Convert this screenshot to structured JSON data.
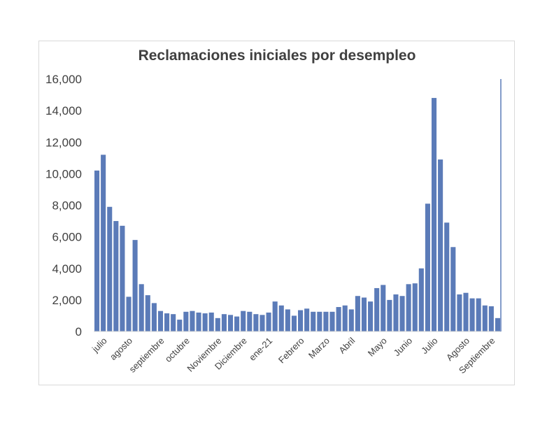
{
  "chart_data": {
    "type": "bar",
    "title": "Reclamaciones iniciales por desempleo",
    "xlabel": "",
    "ylabel": "",
    "ylim": [
      0,
      16000
    ],
    "yticks": [
      "0",
      "2,000",
      "4,000",
      "6,000",
      "8,000",
      "10,000",
      "12,000",
      "14,000",
      "16,000"
    ],
    "grid": false,
    "bar_color": "#5b7bb8",
    "xtick_labels": [
      {
        "label": "julio",
        "index": 1
      },
      {
        "label": "agosto",
        "index": 5
      },
      {
        "label": "septiembre",
        "index": 10
      },
      {
        "label": "octubre",
        "index": 14
      },
      {
        "label": "Noviembre",
        "index": 19
      },
      {
        "label": "Diciembre",
        "index": 23
      },
      {
        "label": "ene-21",
        "index": 27
      },
      {
        "label": "Febrero",
        "index": 32
      },
      {
        "label": "Marzo",
        "index": 36
      },
      {
        "label": "Abril",
        "index": 40
      },
      {
        "label": "Mayo",
        "index": 45
      },
      {
        "label": "Junio",
        "index": 49
      },
      {
        "label": "Julio",
        "index": 53
      },
      {
        "label": "Agosto",
        "index": 58
      },
      {
        "label": "Septiembre",
        "index": 62
      }
    ],
    "values": [
      10200,
      11200,
      7900,
      7000,
      6700,
      2200,
      5800,
      3000,
      2300,
      1800,
      1300,
      1150,
      1100,
      750,
      1250,
      1300,
      1200,
      1150,
      1200,
      850,
      1100,
      1050,
      950,
      1300,
      1250,
      1100,
      1050,
      1200,
      1900,
      1650,
      1400,
      1000,
      1350,
      1450,
      1250,
      1250,
      1250,
      1250,
      1550,
      1650,
      1400,
      2250,
      2150,
      1900,
      2750,
      2950,
      2000,
      2350,
      2250,
      3000,
      3050,
      4000,
      8100,
      14800,
      10900,
      6900,
      5350,
      2350,
      2450,
      2100,
      2100,
      1650,
      1600,
      850
    ]
  }
}
